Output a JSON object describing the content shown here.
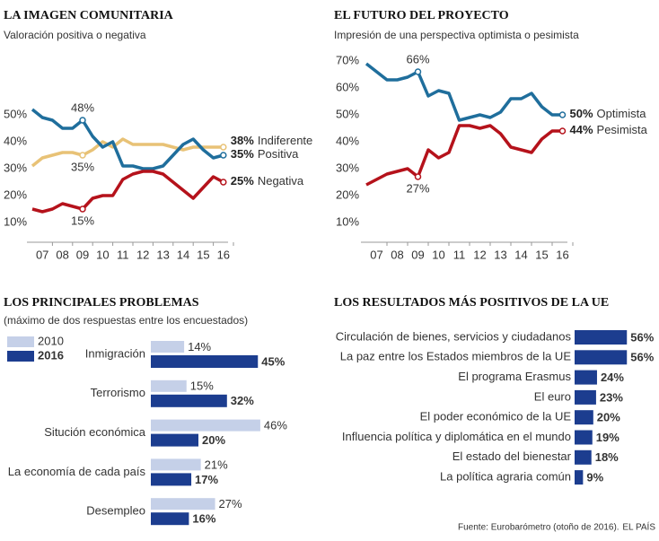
{
  "chart_data": [
    {
      "type": "line",
      "title": "LA IMAGEN COMUNITARIA",
      "subtitle": "Valoración positiva o negativa",
      "categories": [
        null,
        "07",
        null,
        "08",
        null,
        "09",
        null,
        "10",
        null,
        "11",
        null,
        "12",
        null,
        "13",
        null,
        "14",
        null,
        "15",
        null,
        "16"
      ],
      "ylim": [
        5,
        60
      ],
      "yticks": [
        {
          "value": 10,
          "label": "10%"
        },
        {
          "value": 20,
          "label": "20%"
        },
        {
          "value": 30,
          "label": "30%"
        },
        {
          "value": 40,
          "label": "40%"
        },
        {
          "value": 50,
          "label": "50%"
        }
      ],
      "grid": false,
      "series": [
        {
          "name": "Indiferente",
          "color": "#e8c276",
          "values": [
            31,
            34,
            35,
            36,
            36,
            35,
            37,
            40,
            38,
            41,
            39,
            39,
            39,
            39,
            38,
            37,
            38,
            38,
            38,
            38
          ],
          "value_labels": [
            null,
            null,
            null,
            null,
            null,
            "35%",
            null,
            null,
            null,
            null,
            null,
            null,
            null,
            null,
            null,
            null,
            null,
            null,
            null,
            "38%"
          ]
        },
        {
          "name": "Positiva",
          "color": "#1f6e9c",
          "values": [
            52,
            49,
            48,
            45,
            45,
            48,
            42,
            38,
            40,
            31,
            31,
            30,
            30,
            31,
            35,
            39,
            41,
            37,
            34,
            35
          ],
          "value_labels": [
            null,
            null,
            null,
            null,
            null,
            "48%",
            null,
            null,
            null,
            null,
            null,
            null,
            null,
            null,
            null,
            null,
            null,
            null,
            null,
            "35%"
          ]
        },
        {
          "name": "Negativa",
          "color": "#b5121b",
          "values": [
            15,
            14,
            15,
            17,
            16,
            15,
            19,
            20,
            20,
            26,
            28,
            29,
            29,
            28,
            25,
            22,
            19,
            23,
            27,
            25
          ],
          "value_labels": [
            null,
            null,
            null,
            null,
            null,
            "15%",
            null,
            null,
            null,
            null,
            null,
            null,
            null,
            null,
            null,
            null,
            null,
            null,
            null,
            "25%"
          ]
        }
      ]
    },
    {
      "type": "line",
      "title": "EL FUTURO DEL PROYECTO",
      "subtitle": "Impresión de una perspectiva optimista o pesimista",
      "categories": [
        null,
        "07",
        null,
        "08",
        null,
        "09",
        null,
        "10",
        null,
        "11",
        null,
        "12",
        null,
        "13",
        null,
        "14",
        null,
        "15",
        null,
        "16"
      ],
      "ylim": [
        5,
        75
      ],
      "yticks": [
        {
          "value": 10,
          "label": "10%"
        },
        {
          "value": 20,
          "label": "20%"
        },
        {
          "value": 30,
          "label": "30%"
        },
        {
          "value": 40,
          "label": "40%"
        },
        {
          "value": 50,
          "label": "50%"
        },
        {
          "value": 60,
          "label": "60%"
        },
        {
          "value": 70,
          "label": "70%"
        }
      ],
      "grid": false,
      "series": [
        {
          "name": "Optimista",
          "color": "#1f6e9c",
          "values": [
            69,
            66,
            63,
            63,
            64,
            66,
            57,
            59,
            58,
            48,
            49,
            50,
            49,
            51,
            56,
            56,
            58,
            53,
            50,
            50
          ],
          "value_labels": [
            null,
            null,
            null,
            null,
            null,
            "66%",
            null,
            null,
            null,
            null,
            null,
            null,
            null,
            null,
            null,
            null,
            null,
            null,
            null,
            "50%"
          ]
        },
        {
          "name": "Pesimista",
          "color": "#b5121b",
          "values": [
            24,
            26,
            28,
            29,
            30,
            27,
            37,
            34,
            36,
            46,
            46,
            45,
            46,
            43,
            38,
            37,
            36,
            41,
            44,
            44
          ],
          "value_labels": [
            null,
            null,
            null,
            null,
            null,
            "27%",
            null,
            null,
            null,
            null,
            null,
            null,
            null,
            null,
            null,
            null,
            null,
            null,
            null,
            "44%"
          ]
        }
      ]
    },
    {
      "type": "hbar",
      "title": "LOS PRINCIPALES PROBLEMAS",
      "subtitle": "(máximo de dos respuestas entre los encuestados)",
      "categories": [
        "Inmigración",
        "Terrorismo",
        "Situción económica",
        "La economía de cada país",
        "Desempleo"
      ],
      "series": [
        {
          "name": "2010",
          "color": "#c5d0e8",
          "values": [
            14,
            15,
            46,
            21,
            27
          ],
          "value_labels": [
            "14%",
            "15%",
            "46%",
            "21%",
            "27%"
          ]
        },
        {
          "name": "2016",
          "color": "#1c3d8f",
          "values": [
            45,
            32,
            20,
            17,
            16
          ],
          "value_labels": [
            "45%",
            "32%",
            "20%",
            "17%",
            "16%"
          ]
        }
      ]
    },
    {
      "type": "hbar",
      "title": "LOS RESULTADOS MÁS POSITIVOS DE LA UE",
      "categories": [
        "Circulación de bienes, servicios y ciudadanos",
        "La paz entre los Estados miembros de la UE",
        "El programa Erasmus",
        "El euro",
        "El poder económico de la UE",
        "Influencia política y diplomática en el mundo",
        "El estado del bienestar",
        "La política agraria común"
      ],
      "color": "#1c3d8f",
      "values": [
        56,
        56,
        24,
        23,
        20,
        19,
        18,
        9
      ],
      "value_labels": [
        "56%",
        "56%",
        "24%",
        "23%",
        "20%",
        "19%",
        "18%",
        "9%"
      ]
    }
  ],
  "footer": {
    "source": "Fuente: Eurobarómetro (otoño de 2016).",
    "brand": "EL PAÍS"
  }
}
